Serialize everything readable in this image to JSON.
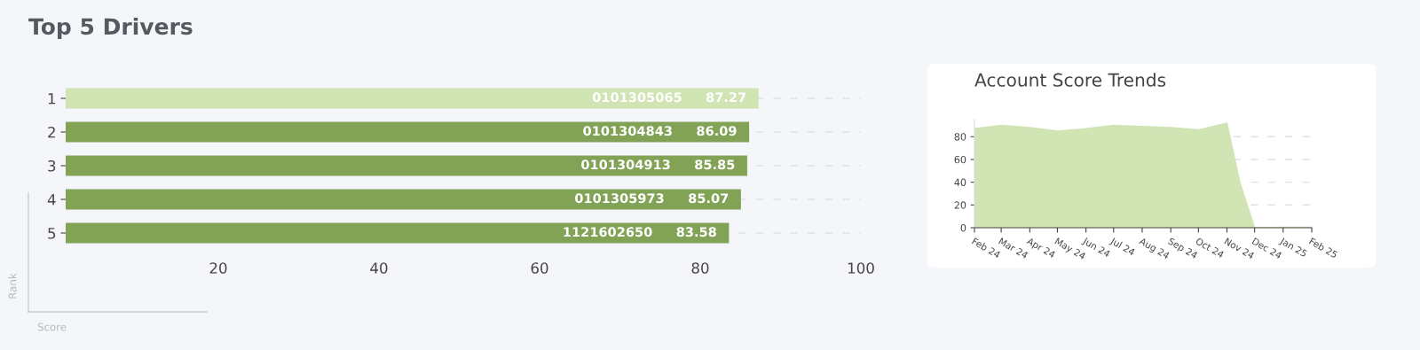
{
  "chart_data": [
    {
      "type": "bar",
      "orientation": "horizontal",
      "title": "Top 5 Drivers",
      "xlabel": "Score",
      "ylabel": "Rank",
      "categories": [
        "1",
        "2",
        "3",
        "4",
        "5"
      ],
      "values": [
        87.27,
        86.09,
        85.85,
        85.07,
        83.58
      ],
      "colors": [
        "#d0e4b4",
        "#82a356",
        "#82a356",
        "#82a356",
        "#82a356"
      ],
      "data_labels": true,
      "annotations": [
        "0101305065",
        "0101304843",
        "0101304913",
        "0101305973",
        "1121602650"
      ],
      "xlim": [
        1,
        100
      ],
      "xticks": [
        20,
        40,
        60,
        80,
        100
      ],
      "grid": "y"
    },
    {
      "type": "area",
      "title": "Account Score Trends",
      "x": [
        "2024-02",
        "2024-03",
        "2024-04",
        "2024-05",
        "2024-06",
        "2024-07",
        "2024-08",
        "2024-09",
        "2024-10",
        "2024-11",
        "2024-11-15",
        "2024-12",
        "2025-01",
        "2025-02"
      ],
      "series": [
        {
          "color": "#d0e4b4",
          "values": [
            87,
            90,
            88,
            85,
            87,
            90,
            89,
            88,
            86,
            92,
            40,
            0,
            0.5,
            0.5
          ]
        }
      ],
      "ylim": [
        0,
        95
      ],
      "xlim": [
        "2024-02",
        "2025-02"
      ],
      "yticks": [
        0,
        20,
        40,
        60,
        80
      ],
      "xticks": [
        {
          "value": "2024-02",
          "label": "Feb 24"
        },
        {
          "value": "2024-03",
          "label": "Mar 24"
        },
        {
          "value": "2024-04",
          "label": "Apr 24"
        },
        {
          "value": "2024-05",
          "label": "May 24"
        },
        {
          "value": "2024-06",
          "label": "Jun 24"
        },
        {
          "value": "2024-07",
          "label": "Jul 24"
        },
        {
          "value": "2024-08",
          "label": "Aug 24"
        },
        {
          "value": "2024-09",
          "label": "Sep 24"
        },
        {
          "value": "2024-10",
          "label": "Oct 24"
        },
        {
          "value": "2024-11",
          "label": "Nov 24"
        },
        {
          "value": "2024-12",
          "label": "Dec 24"
        },
        {
          "value": "2025-01",
          "label": "Jan 25"
        },
        {
          "value": "2025-02",
          "label": "Feb 25"
        }
      ],
      "grid": "y"
    }
  ]
}
